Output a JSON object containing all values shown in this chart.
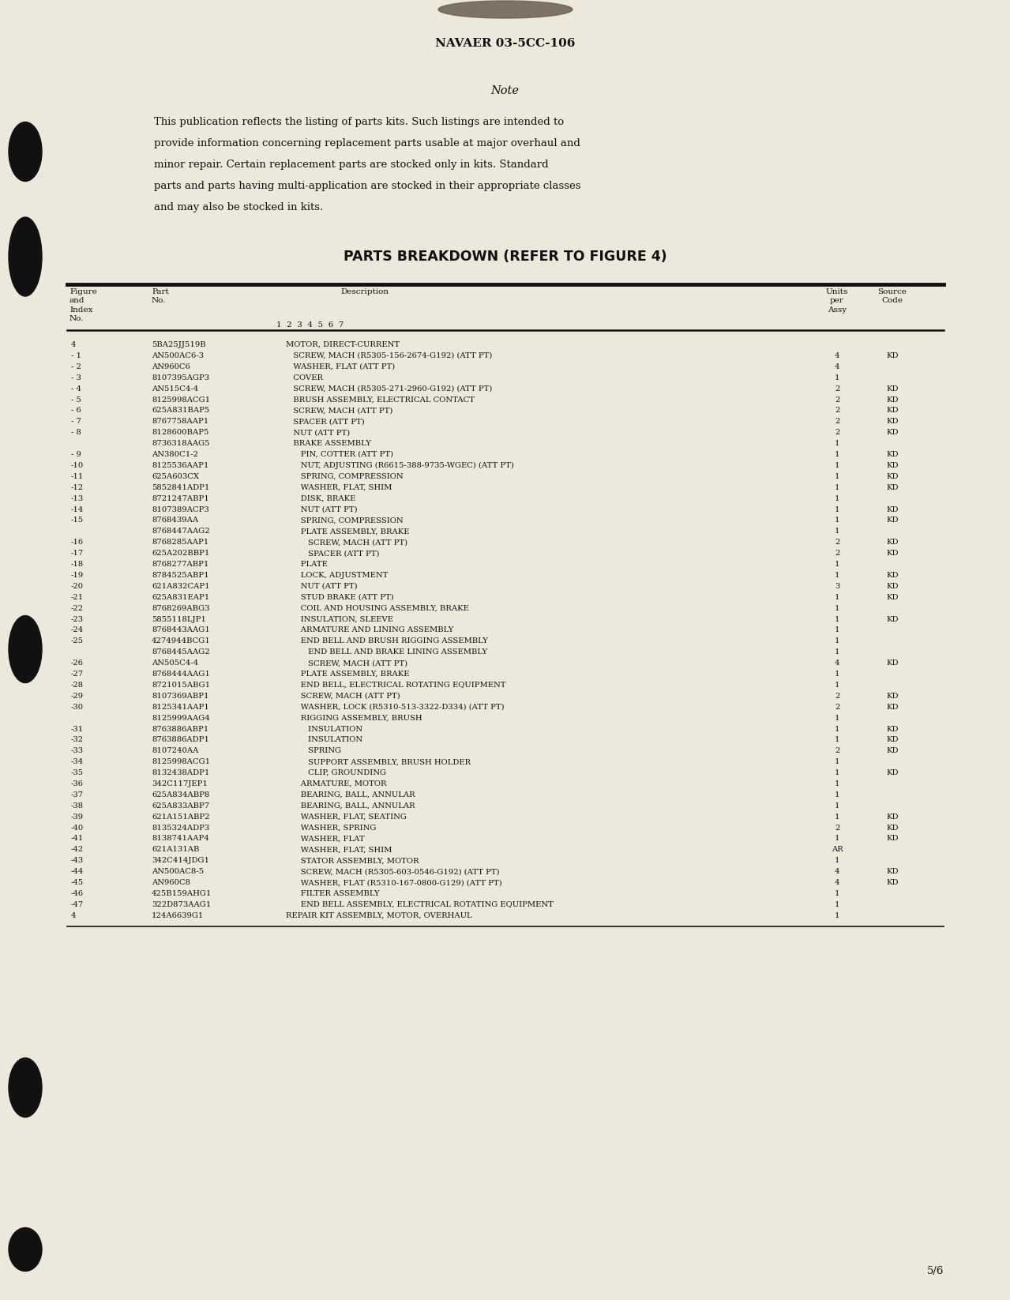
{
  "page_bg": "#ede8dc",
  "header_text": "NAVAER 03-5CC-106",
  "note_title": "Note",
  "note_body": "This publication reflects the listing of parts kits. Such listings are intended to\nprovide information concerning replacement parts usable at major overhaul and\nminor repair. Certain replacement parts are stocked only in kits. Standard\nparts and parts having multi-application are stocked in their appropriate classes\nand may also be stocked in kits.",
  "section_title": "PARTS BREAKDOWN (REFER TO FIGURE 4)",
  "table_rows": [
    [
      "4",
      "5BA25JJ519B",
      "MOTOR, DIRECT-CURRENT",
      "",
      ""
    ],
    [
      "  - 1",
      "AN500AC6-3",
      "   SCREW, MACH (R5305-156-2674-G192) (ATT PT)",
      "4",
      "KD"
    ],
    [
      "  - 2",
      "AN960C6",
      "   WASHER, FLAT (ATT PT)",
      "4",
      ""
    ],
    [
      "  - 3",
      "8107395AGP3",
      "   COVER",
      "1",
      ""
    ],
    [
      "  - 4",
      "AN515C4-4",
      "   SCREW, MACH (R5305-271-2960-G192) (ATT PT)",
      "2",
      "KD"
    ],
    [
      "  - 5",
      "8125998ACG1",
      "   BRUSH ASSEMBLY, ELECTRICAL CONTACT",
      "2",
      "KD"
    ],
    [
      "  - 6",
      "625A831BAP5",
      "   SCREW, MACH (ATT PT)",
      "2",
      "KD"
    ],
    [
      "  - 7",
      "8767758AAP1",
      "   SPACER (ATT PT)",
      "2",
      "KD"
    ],
    [
      "  - 8",
      "8128600BAP5",
      "   NUT (ATT PT)",
      "2",
      "KD"
    ],
    [
      "",
      "8736318AAG5",
      "   BRAKE ASSEMBLY",
      "1",
      ""
    ],
    [
      "  - 9",
      "AN380C1-2",
      "      PIN, COTTER (ATT PT)",
      "1",
      "KD"
    ],
    [
      " -10",
      "8125536AAP1",
      "      NUT, ADJUSTING (R6615-388-9735-WGEC) (ATT PT)",
      "1",
      "KD"
    ],
    [
      " -11",
      "625A603CX",
      "      SPRING, COMPRESSION",
      "1",
      "KD"
    ],
    [
      " -12",
      "5852841ADP1",
      "      WASHER, FLAT, SHIM",
      "1",
      "KD"
    ],
    [
      " -13",
      "8721247ABP1",
      "      DISK, BRAKE",
      "1",
      ""
    ],
    [
      " -14",
      "8107389ACP3",
      "      NUT (ATT PT)",
      "1",
      "KD"
    ],
    [
      " -15",
      "8768439AA",
      "      SPRING, COMPRESSION",
      "1",
      "KD"
    ],
    [
      "",
      "8768447AAG2",
      "      PLATE ASSEMBLY, BRAKE",
      "1",
      ""
    ],
    [
      " -16",
      "8768285AAP1",
      "         SCREW, MACH (ATT PT)",
      "2",
      "KD"
    ],
    [
      " -17",
      "625A202BBP1",
      "         SPACER (ATT PT)",
      "2",
      "KD"
    ],
    [
      " -18",
      "8768277ABP1",
      "      PLATE",
      "1",
      ""
    ],
    [
      " -19",
      "8784525ABP1",
      "      LOCK, ADJUSTMENT",
      "1",
      "KD"
    ],
    [
      " -20",
      "621A832CAP1",
      "      NUT (ATT PT)",
      "3",
      "KD"
    ],
    [
      " -21",
      "625A831EAP1",
      "      STUD BRAKE (ATT PT)",
      "1",
      "KD"
    ],
    [
      " -22",
      "8768269ABG3",
      "      COIL AND HOUSING ASSEMBLY, BRAKE",
      "1",
      ""
    ],
    [
      " -23",
      "5855118LJP1",
      "      INSULATION, SLEEVE",
      "1",
      "KD"
    ],
    [
      " -24",
      "8768443AAG1",
      "      ARMATURE AND LINING ASSEMBLY",
      "1",
      ""
    ],
    [
      " -25",
      "4274944BCG1",
      "      END BELL AND BRUSH RIGGING ASSEMBLY",
      "1",
      ""
    ],
    [
      "",
      "8768445AAG2",
      "         END BELL AND BRAKE LINING ASSEMBLY",
      "1",
      ""
    ],
    [
      " -26",
      "AN505C4-4",
      "         SCREW, MACH (ATT PT)",
      "4",
      "KD"
    ],
    [
      " -27",
      "8768444AAG1",
      "      PLATE ASSEMBLY, BRAKE",
      "1",
      ""
    ],
    [
      " -28",
      "8721015ABG1",
      "      END BELL, ELECTRICAL ROTATING EQUIPMENT",
      "1",
      ""
    ],
    [
      " -29",
      "8107369ABP1",
      "      SCREW, MACH (ATT PT)",
      "2",
      "KD"
    ],
    [
      " -30",
      "8125341AAP1",
      "      WASHER, LOCK (R5310-513-3322-D334) (ATT PT)",
      "2",
      "KD"
    ],
    [
      "",
      "8125999AAG4",
      "      RIGGING ASSEMBLY, BRUSH",
      "1",
      ""
    ],
    [
      " -31",
      "8763886ABP1",
      "         INSULATION",
      "1",
      "KD"
    ],
    [
      " -32",
      "8763886ADP1",
      "         INSULATION",
      "1",
      "KD"
    ],
    [
      " -33",
      "8107240AA",
      "         SPRING",
      "2",
      "KD"
    ],
    [
      " -34",
      "8125998ACG1",
      "         SUPPORT ASSEMBLY, BRUSH HOLDER",
      "1",
      ""
    ],
    [
      " -35",
      "8132438ADP1",
      "         CLIP, GROUNDING",
      "1",
      "KD"
    ],
    [
      " -36",
      "342C117JEP1",
      "      ARMATURE, MOTOR",
      "1",
      ""
    ],
    [
      " -37",
      "625A834ABP8",
      "      BEARING, BALL, ANNULAR",
      "1",
      ""
    ],
    [
      " -38",
      "625A833ABP7",
      "      BEARING, BALL, ANNULAR",
      "1",
      ""
    ],
    [
      " -39",
      "621A151ABP2",
      "      WASHER, FLAT, SEATING",
      "1",
      "KD"
    ],
    [
      " -40",
      "8135324ADP3",
      "      WASHER, SPRING",
      "2",
      "KD"
    ],
    [
      " -41",
      "8138741AAP4",
      "      WASHER, FLAT",
      "1",
      "KD"
    ],
    [
      " -42",
      "621A131AB",
      "      WASHER, FLAT, SHIM",
      "AR",
      ""
    ],
    [
      " -43",
      "342C414JDG1",
      "      STATOR ASSEMBLY, MOTOR",
      "1",
      ""
    ],
    [
      " -44",
      "AN500AC8-5",
      "      SCREW, MACH (R5305-603-0546-G192) (ATT PT)",
      "4",
      "KD"
    ],
    [
      " -45",
      "AN960C8",
      "      WASHER, FLAT (R5310-167-0800-G129) (ATT PT)",
      "4",
      "KD"
    ],
    [
      " -46",
      "425B159AHG1",
      "      FILTER ASSEMBLY",
      "1",
      ""
    ],
    [
      " -47",
      "322D873AAG1",
      "      END BELL ASSEMBLY, ELECTRICAL ROTATING EQUIPMENT",
      "1",
      ""
    ],
    [
      "4",
      "124A6639G1",
      "REPAIR KIT ASSEMBLY, MOTOR, OVERHAUL",
      "1",
      ""
    ]
  ],
  "page_number": "5/6"
}
